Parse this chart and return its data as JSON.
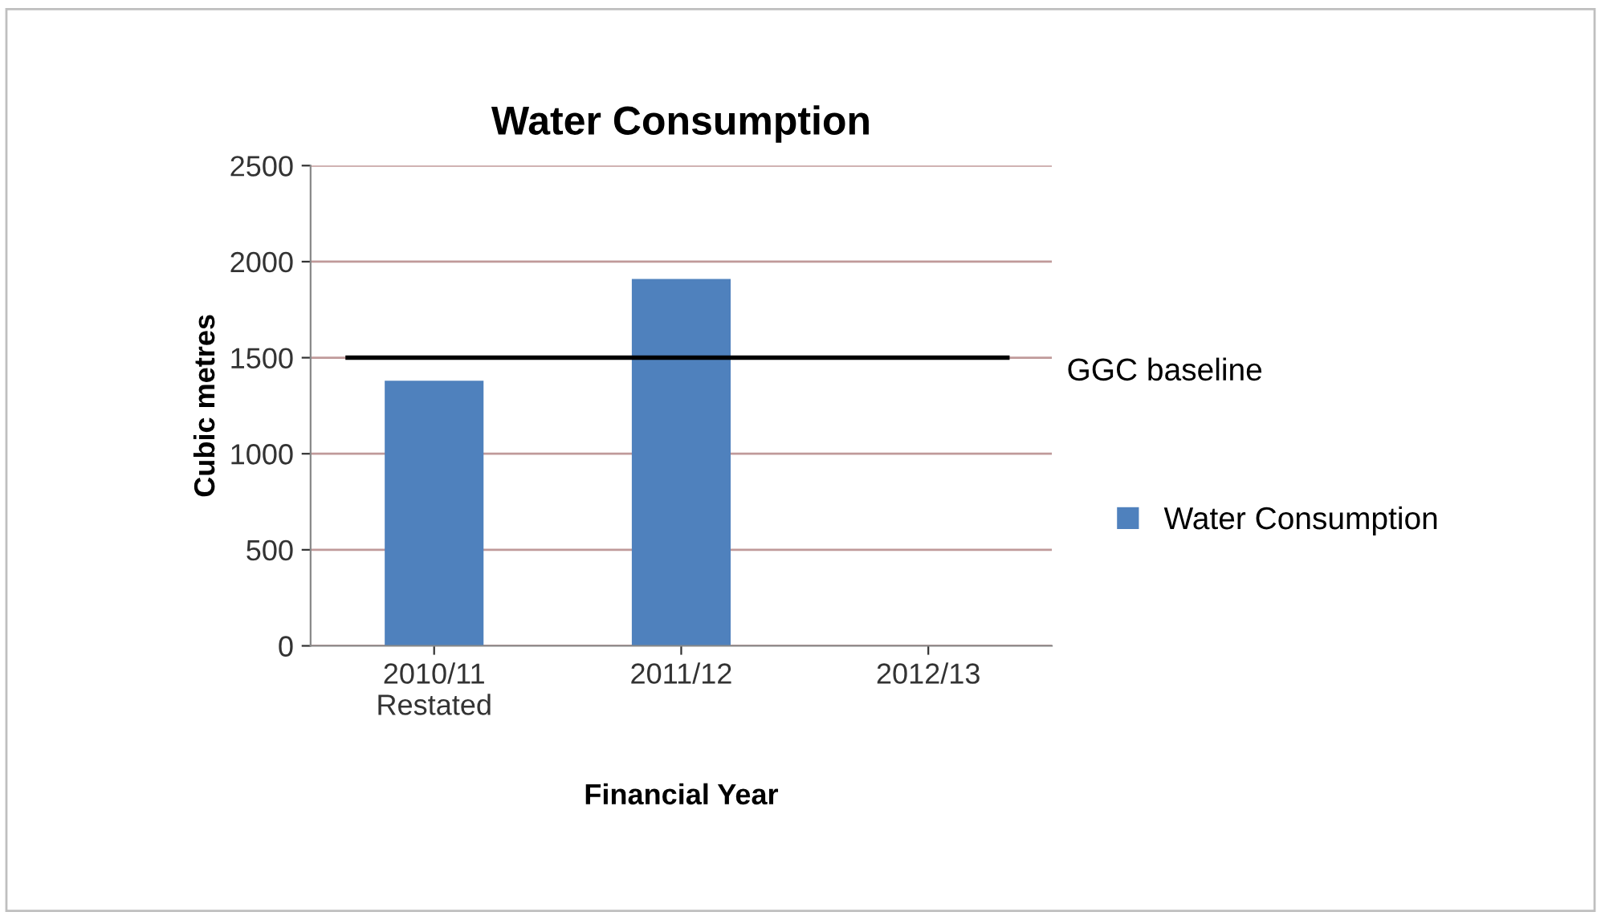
{
  "chart_data": {
    "type": "bar",
    "title": "Water Consumption",
    "xlabel": "Financial Year",
    "ylabel": "Cubic metres",
    "categories": [
      "2010/11\nRestated",
      "2011/12",
      "2012/13"
    ],
    "series": [
      {
        "name": "Water Consumption",
        "color": "#4f81bd",
        "values": [
          1380,
          1910,
          null
        ]
      }
    ],
    "ylim": [
      0,
      2500
    ],
    "yticks": [
      0,
      500,
      1000,
      1500,
      2000,
      2500
    ],
    "grid": "y",
    "legend": "right",
    "ref_lines": [
      {
        "axis": "y",
        "value": 1500,
        "label": "GGC baseline",
        "color": "#000000"
      }
    ]
  }
}
